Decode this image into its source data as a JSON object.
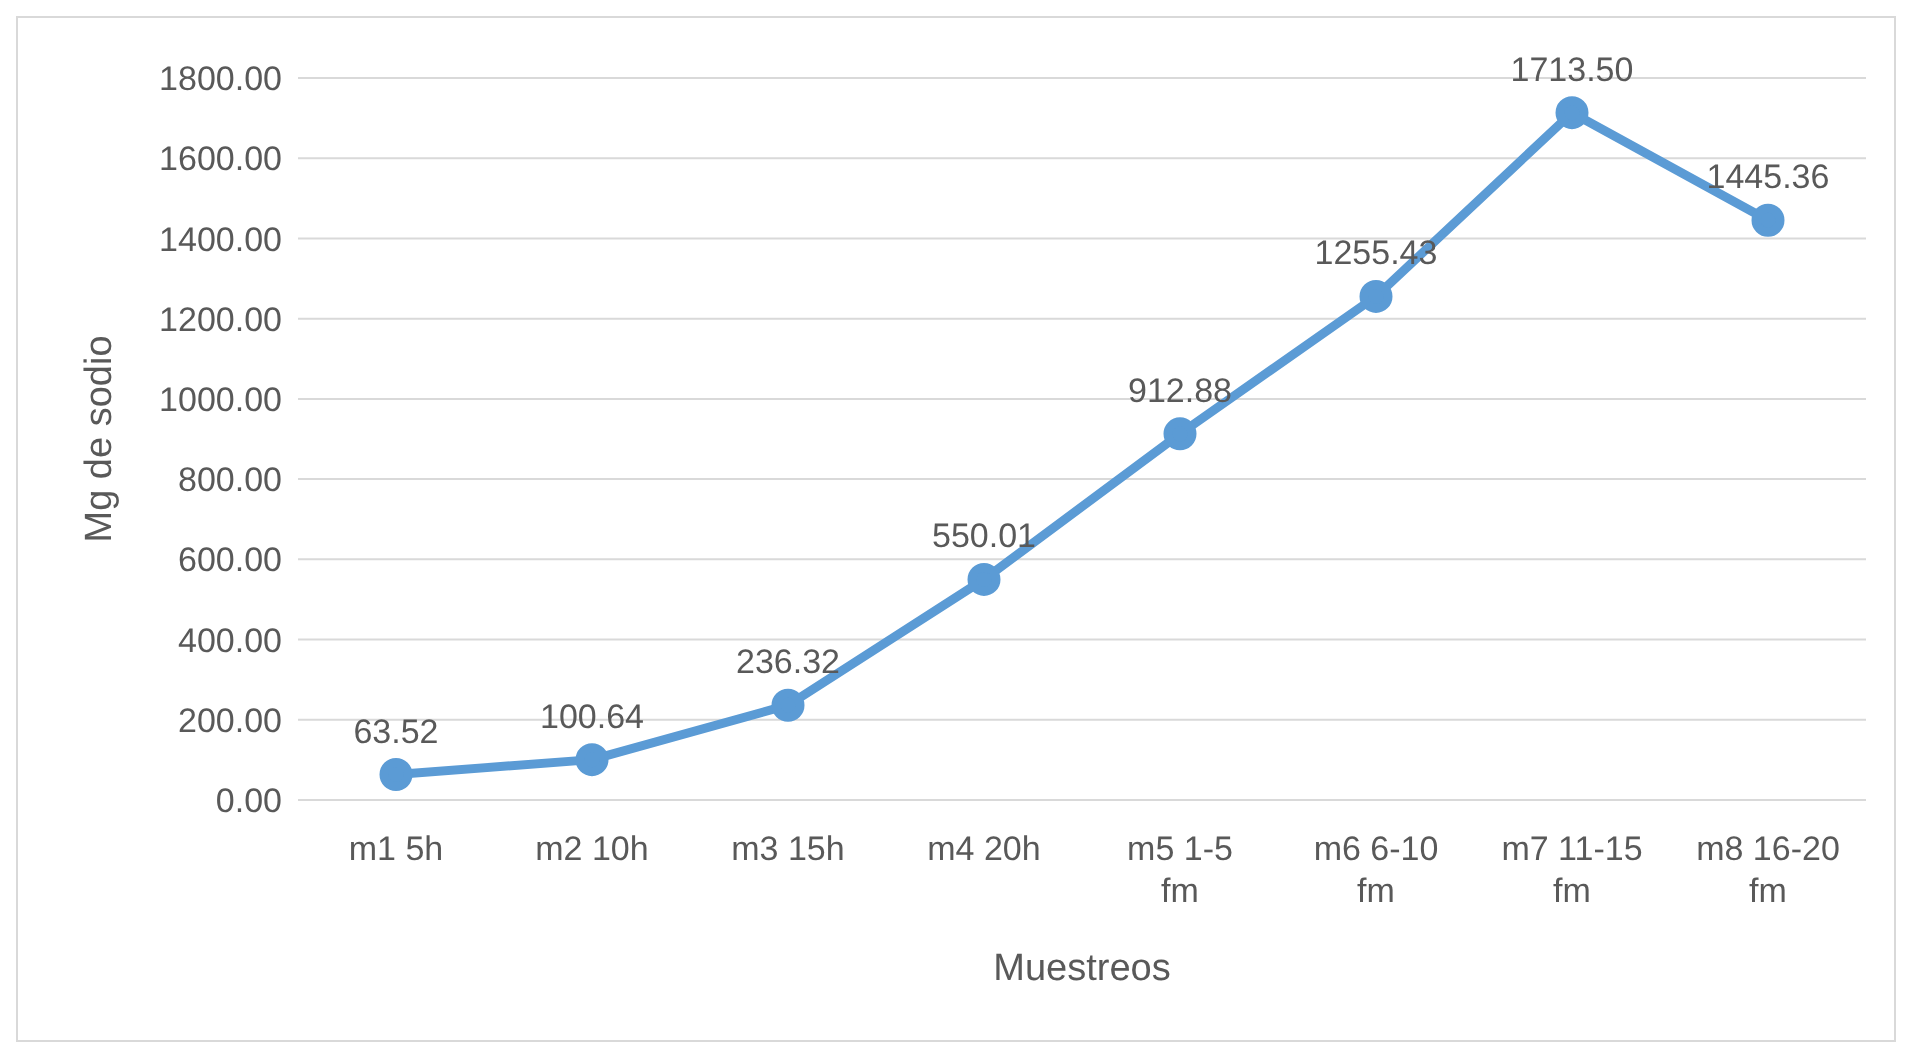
{
  "chart_data": {
    "type": "line",
    "xlabel": "Muestreos",
    "ylabel": "Mg de sodio",
    "categories": [
      "m1 5h",
      "m2 10h",
      "m3 15h",
      "m4 20h",
      "m5 1-5 fm",
      "m6 6-10 fm",
      "m7 11-15 fm",
      "m8 16-20 fm"
    ],
    "series": [
      {
        "color": "#5b9bd5",
        "values": [
          63.52,
          100.64,
          236.32,
          550.01,
          912.88,
          1255.43,
          1713.5,
          1445.36
        ],
        "value_labels": [
          "63.52",
          "100.64",
          "236.32",
          "550.01",
          "912.88",
          "1255.43",
          "1713.50",
          "1445.36"
        ]
      }
    ],
    "ylim": [
      0,
      1800
    ],
    "yticks": [
      {
        "value": 0,
        "label": "0.00"
      },
      {
        "value": 200,
        "label": "200.00"
      },
      {
        "value": 400,
        "label": "400.00"
      },
      {
        "value": 600,
        "label": "600.00"
      },
      {
        "value": 800,
        "label": "800.00"
      },
      {
        "value": 1000,
        "label": "1000.00"
      },
      {
        "value": 1200,
        "label": "1200.00"
      },
      {
        "value": 1400,
        "label": "1400.00"
      },
      {
        "value": 1600,
        "label": "1600.00"
      },
      {
        "value": 1800,
        "label": "1800.00"
      }
    ],
    "grid": "y",
    "legend": false,
    "marker": "circle",
    "line_style": "solid"
  }
}
